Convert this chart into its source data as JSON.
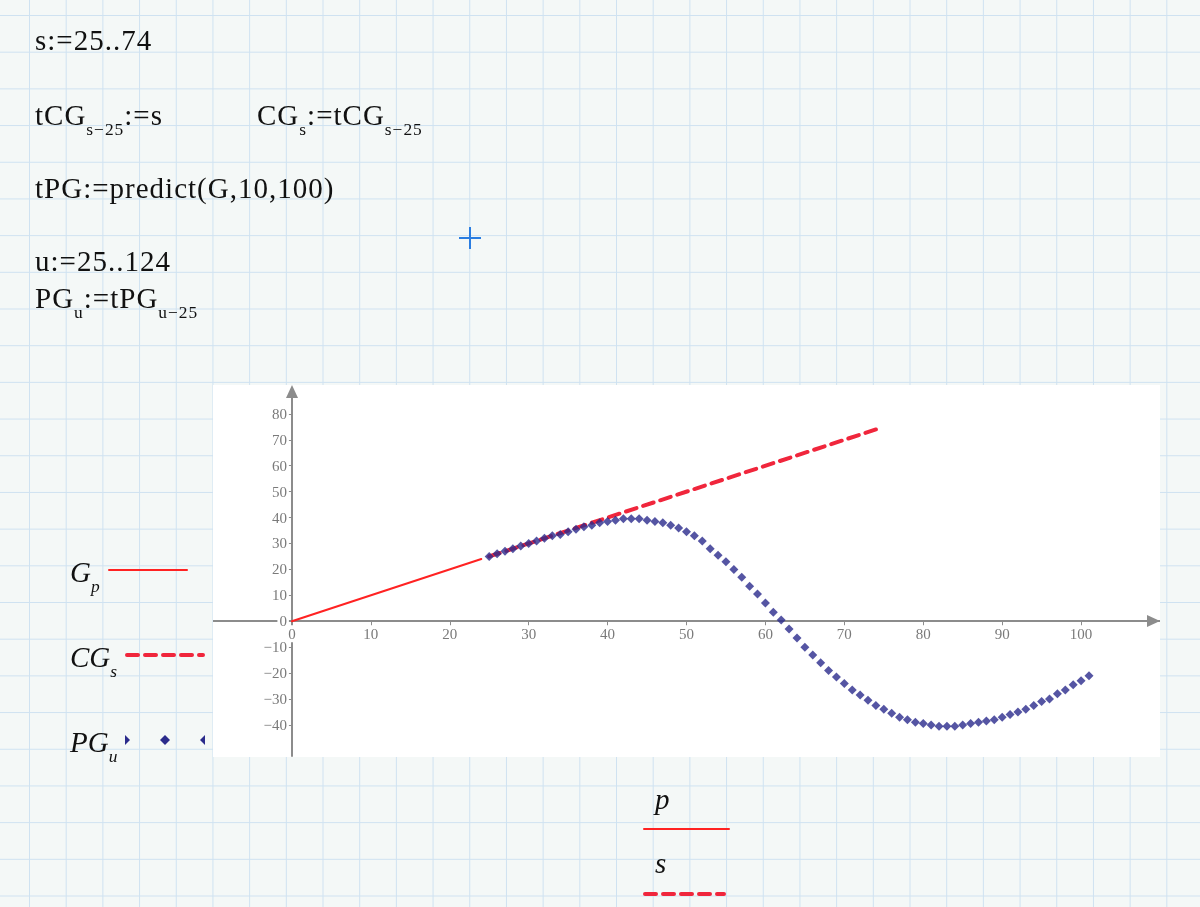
{
  "chart_data": {
    "type": "line",
    "annotations": [
      "s:=25..74",
      "tCG$_{s−25}$:=s",
      "CG$_{s}$:=tCG$_{s−25}$",
      "tPG:=predict(G,10,100)",
      "u:=25..124",
      "PG$_{u}$:=tPG$_{u−25}$",
      "p",
      "s"
    ],
    "xlim": [
      -10,
      110
    ],
    "xticks": [
      0,
      10,
      20,
      30,
      40,
      50,
      60,
      70,
      80,
      90,
      100
    ],
    "ylim": [
      -52,
      90
    ],
    "yticks": [
      {
        "value": -40,
        "label": "−40"
      },
      {
        "value": -30,
        "label": "−30"
      },
      {
        "value": -20,
        "label": "−20"
      },
      {
        "value": -10,
        "label": "−10"
      },
      0,
      10,
      20,
      30,
      40,
      50,
      60,
      70,
      80
    ],
    "legend": "left",
    "series": [
      {
        "name": "G$_{p}$",
        "color": "#ff2222",
        "line_style": "solid",
        "marker": "none",
        "x": [
          0,
          24
        ],
        "values": [
          0,
          24
        ]
      },
      {
        "name": "CG$_{s}$",
        "color": "#f0263c",
        "line_style": "dashed",
        "marker": "none",
        "x": [
          25,
          74
        ],
        "values": [
          25,
          74
        ]
      },
      {
        "name": "PG$_{u}$",
        "type": "scatter",
        "color": "#2b2b8c",
        "marker": "diamond",
        "x": [
          25,
          26,
          27,
          28,
          29,
          30,
          31,
          32,
          33,
          34,
          35,
          36,
          37,
          38,
          39,
          40,
          41,
          42,
          43,
          44,
          45,
          46,
          47,
          48,
          49,
          50,
          51,
          52,
          53,
          54,
          55,
          56,
          57,
          58,
          59,
          60,
          61,
          62,
          63,
          64,
          65,
          66,
          67,
          68,
          69,
          70,
          71,
          72,
          73,
          74,
          75,
          76,
          77,
          78,
          79,
          80,
          81,
          82,
          83,
          84,
          85,
          86,
          87,
          88,
          89,
          90,
          91,
          92,
          93,
          94,
          95,
          96,
          97,
          98,
          99,
          100,
          101
        ],
        "values": [
          25,
          26,
          27,
          28,
          29,
          30,
          31,
          32,
          33,
          33.5,
          34.5,
          35.5,
          36.5,
          37,
          38,
          38.5,
          39,
          39.5,
          39.5,
          39.5,
          39,
          38.5,
          38,
          37,
          36,
          34.5,
          33,
          31,
          28,
          25.5,
          23,
          20,
          17,
          13.5,
          10.5,
          7,
          3.5,
          0.5,
          -3,
          -6.5,
          -10,
          -13,
          -16,
          -19,
          -21.5,
          -24,
          -26.5,
          -28.5,
          -30.5,
          -32.5,
          -34,
          -35.5,
          -37,
          -38,
          -39,
          -39.5,
          -40,
          -40.5,
          -40.5,
          -40.5,
          -40,
          -39.5,
          -39,
          -38.5,
          -38,
          -37,
          -36,
          -35,
          -34,
          -32.5,
          -31,
          -30,
          -28,
          -26.5,
          -24.5,
          -23,
          -21
        ]
      }
    ]
  }
}
